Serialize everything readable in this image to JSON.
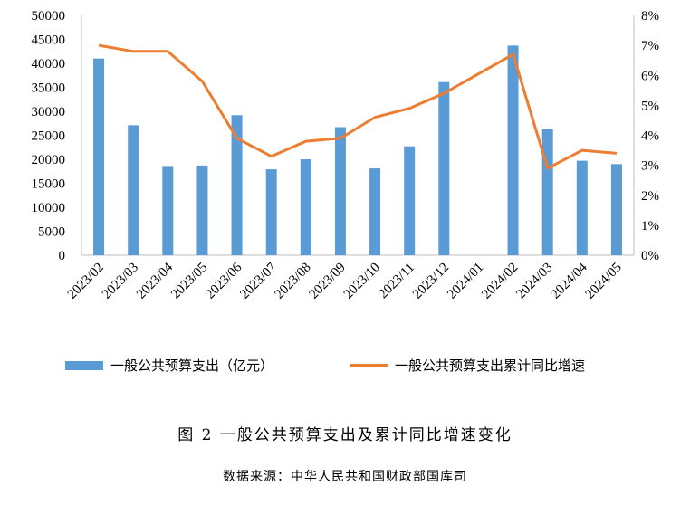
{
  "chart_data": {
    "type": "bar",
    "categories": [
      "2023/02",
      "2023/03",
      "2023/04",
      "2023/05",
      "2023/06",
      "2023/07",
      "2023/08",
      "2023/09",
      "2023/10",
      "2023/11",
      "2023/12",
      "2024/01",
      "2024/02",
      "2024/03",
      "2024/04",
      "2024/05"
    ],
    "series": [
      {
        "name": "一般公共预算支出（亿元）",
        "type": "bar",
        "axis": "left",
        "values": [
          41000,
          27100,
          18600,
          18700,
          29200,
          17900,
          20000,
          26700,
          18100,
          22700,
          36100,
          null,
          43700,
          26300,
          19700,
          19000
        ]
      },
      {
        "name": "一般公共预算支出累计同比增速",
        "type": "line",
        "axis": "right",
        "values": [
          7.0,
          6.8,
          6.8,
          5.8,
          3.9,
          3.3,
          3.8,
          3.9,
          4.6,
          4.9,
          5.4,
          null,
          6.7,
          2.9,
          3.5,
          3.4
        ]
      }
    ],
    "y_left": {
      "ylim": [
        0,
        50000
      ],
      "ticks": [
        "0",
        "5000",
        "10000",
        "15000",
        "20000",
        "25000",
        "30000",
        "35000",
        "40000",
        "45000",
        "50000"
      ]
    },
    "y_right": {
      "ylim": [
        0,
        8
      ],
      "ticks": [
        "0%",
        "1%",
        "2%",
        "3%",
        "4%",
        "5%",
        "6%",
        "7%",
        "8%"
      ]
    },
    "colors": {
      "bar": "#5b9bd5",
      "line": "#ed7d31"
    },
    "legend_position": "bottom"
  },
  "legend": {
    "bar_label": "一般公共预算支出（亿元）",
    "line_label": "一般公共预算支出累计同比增速"
  },
  "caption": "图 2 一般公共预算支出及累计同比增速变化",
  "source": "数据来源：中华人民共和国财政部国库司"
}
